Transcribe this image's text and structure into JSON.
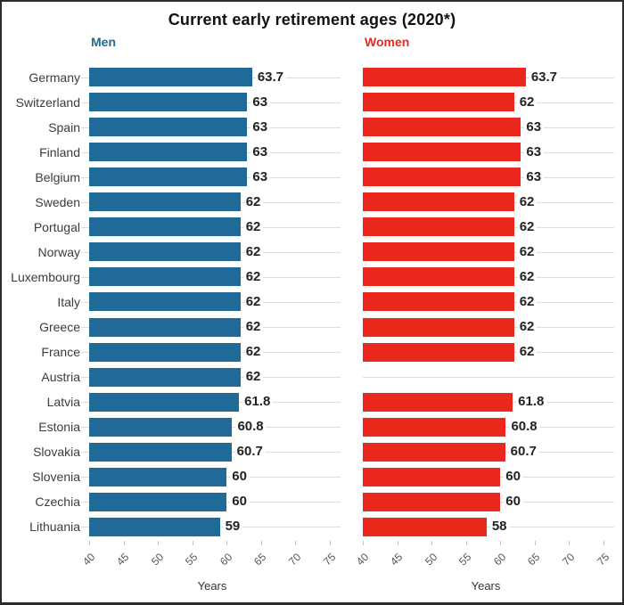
{
  "chart_data": {
    "type": "bar",
    "orientation": "horizontal",
    "title": "Current early retirement ages (2020*)",
    "categories": [
      "Germany",
      "Switzerland",
      "Spain",
      "Finland",
      "Belgium",
      "Sweden",
      "Portugal",
      "Norway",
      "Luxembourg",
      "Italy",
      "Greece",
      "France",
      "Austria",
      "Latvia",
      "Estonia",
      "Slovakia",
      "Slovenia",
      "Czechia",
      "Lithuania"
    ],
    "series": [
      {
        "name": "Men",
        "color": "#1f6a96",
        "values": [
          63.7,
          63,
          63,
          63,
          63,
          62,
          62,
          62,
          62,
          62,
          62,
          62,
          62,
          61.8,
          60.8,
          60.7,
          60,
          60,
          59
        ]
      },
      {
        "name": "Women",
        "color": "#ea281e",
        "values": [
          63.7,
          62,
          63,
          63,
          63,
          62,
          62,
          62,
          62,
          62,
          62,
          62,
          null,
          61.8,
          60.8,
          60.7,
          60,
          60,
          58
        ]
      }
    ],
    "xlabel": "Years",
    "xlim": [
      40,
      75.8
    ],
    "xticks": [
      40,
      45,
      50,
      55,
      60,
      65,
      70,
      75
    ],
    "grid": "horizontal-row-lines",
    "legend_position": "colored series name above each facet",
    "value_labels": "shown at end of each bar; Austria has no value for Women"
  }
}
